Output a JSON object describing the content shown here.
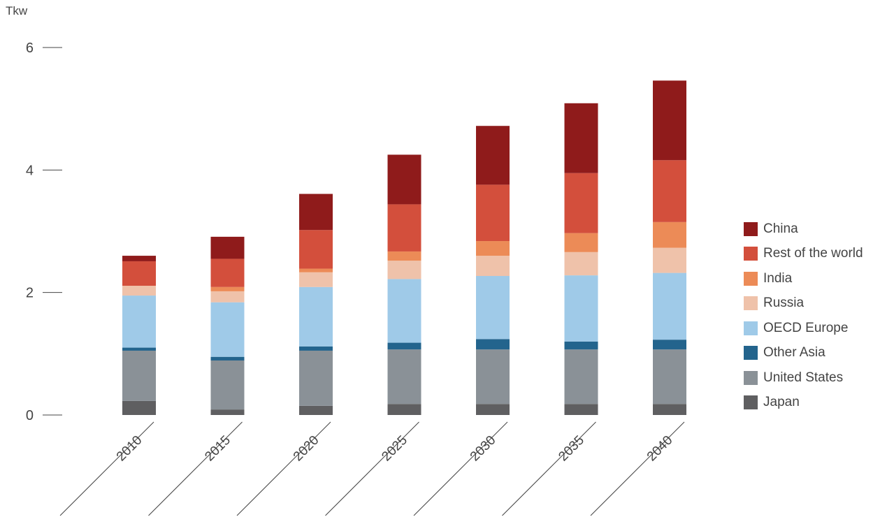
{
  "chart_data": {
    "type": "bar",
    "stacked": true,
    "unit_label": "Tkw",
    "categories": [
      "2010",
      "2015",
      "2020",
      "2025",
      "2030",
      "2035",
      "2040"
    ],
    "series": [
      {
        "name": "Japan",
        "color": "#5f5f61",
        "values": [
          0.23,
          0.09,
          0.15,
          0.18,
          0.18,
          0.18,
          0.18
        ]
      },
      {
        "name": "United States",
        "color": "#8a9197",
        "values": [
          0.82,
          0.8,
          0.9,
          0.89,
          0.89,
          0.89,
          0.89
        ]
      },
      {
        "name": "Other Asia",
        "color": "#23648d",
        "values": [
          0.05,
          0.06,
          0.07,
          0.11,
          0.17,
          0.13,
          0.16
        ]
      },
      {
        "name": "OECD Europe",
        "color": "#9fcae8",
        "values": [
          0.85,
          0.89,
          0.97,
          1.04,
          1.03,
          1.08,
          1.09
        ]
      },
      {
        "name": "Russia",
        "color": "#efc2aa",
        "values": [
          0.16,
          0.18,
          0.24,
          0.3,
          0.33,
          0.38,
          0.41
        ]
      },
      {
        "name": "India",
        "color": "#ec8b57",
        "values": [
          0.0,
          0.07,
          0.06,
          0.15,
          0.24,
          0.31,
          0.42
        ]
      },
      {
        "name": "Rest of the world",
        "color": "#d34f3c",
        "values": [
          0.4,
          0.46,
          0.63,
          0.77,
          0.92,
          0.98,
          1.01
        ]
      },
      {
        "name": "China",
        "color": "#8f1b1b",
        "values": [
          0.09,
          0.36,
          0.59,
          0.81,
          0.96,
          1.14,
          1.3
        ]
      }
    ],
    "legend_order": [
      "China",
      "Rest of the world",
      "India",
      "Russia",
      "OECD Europe",
      "Other Asia",
      "United States",
      "Japan"
    ],
    "yticks": [
      "0",
      "2",
      "4",
      "6"
    ],
    "ylim": [
      0,
      6
    ],
    "grid": false,
    "legend_position": "right"
  }
}
